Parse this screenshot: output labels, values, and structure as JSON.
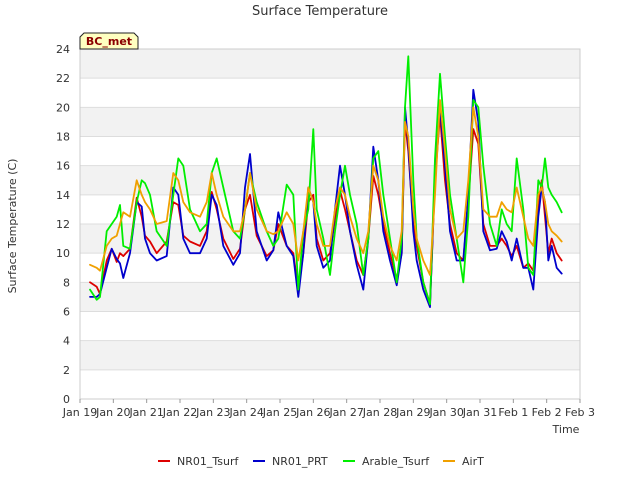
{
  "chart_data": {
    "type": "line",
    "title": "Surface Temperature",
    "xlabel": "Time",
    "ylabel": "Surface Temperature (C)",
    "station_badge": "BC_met",
    "ylim": [
      0,
      24
    ],
    "xlim": [
      0,
      15
    ],
    "y_ticks": [
      0,
      2,
      4,
      6,
      8,
      10,
      12,
      14,
      16,
      18,
      20,
      22,
      24
    ],
    "x_ticks": [
      {
        "label": "Jan 19",
        "value": 0
      },
      {
        "label": "Jan 20",
        "value": 1
      },
      {
        "label": "Jan 21",
        "value": 2
      },
      {
        "label": "Jan 22",
        "value": 3
      },
      {
        "label": "Jan 23",
        "value": 4
      },
      {
        "label": "Jan 24",
        "value": 5
      },
      {
        "label": "Jan 25",
        "value": 6
      },
      {
        "label": "Jan 26",
        "value": 7
      },
      {
        "label": "Jan 27",
        "value": 8
      },
      {
        "label": "Jan 28",
        "value": 9
      },
      {
        "label": "Jan 29",
        "value": 10
      },
      {
        "label": "Jan 30",
        "value": 11
      },
      {
        "label": "Jan 31",
        "value": 12
      },
      {
        "label": "Feb 1",
        "value": 13
      },
      {
        "label": "Feb 2",
        "value": 14
      },
      {
        "label": "Feb 3",
        "value": 15
      }
    ],
    "series": [
      {
        "name": "NR01_Tsurf",
        "color": "#dd0000",
        "x": [
          0.3,
          0.5,
          0.6,
          0.8,
          0.95,
          1.1,
          1.2,
          1.3,
          1.5,
          1.7,
          1.85,
          1.95,
          2.1,
          2.3,
          2.6,
          2.8,
          2.95,
          3.1,
          3.3,
          3.6,
          3.8,
          3.95,
          4.1,
          4.3,
          4.6,
          4.8,
          4.95,
          5.1,
          5.3,
          5.6,
          5.8,
          5.95,
          6.2,
          6.4,
          6.55,
          6.7,
          6.85,
          7.0,
          7.1,
          7.3,
          7.5,
          7.65,
          7.8,
          7.95,
          8.1,
          8.3,
          8.5,
          8.65,
          8.8,
          8.95,
          9.1,
          9.3,
          9.5,
          9.65,
          9.75,
          9.85,
          10.0,
          10.1,
          10.3,
          10.5,
          10.65,
          10.8,
          10.95,
          11.1,
          11.3,
          11.5,
          11.65,
          11.8,
          11.95,
          12.1,
          12.3,
          12.5,
          12.65,
          12.8,
          12.95,
          13.1,
          13.3,
          13.45,
          13.6,
          13.75,
          13.85,
          13.95,
          14.05,
          14.15,
          14.3,
          14.45
        ],
        "values": [
          8.0,
          7.7,
          7.2,
          9.5,
          10.3,
          9.4,
          10.0,
          9.8,
          10.3,
          13.8,
          12.5,
          11.2,
          10.8,
          10.0,
          10.8,
          13.5,
          13.3,
          11.2,
          10.8,
          10.5,
          11.5,
          14.2,
          13.0,
          11.0,
          9.6,
          10.3,
          13.0,
          14.0,
          11.2,
          9.8,
          10.2,
          12.0,
          10.5,
          10.0,
          7.5,
          10.0,
          13.5,
          14.0,
          11.0,
          9.5,
          10.0,
          12.3,
          14.3,
          13.0,
          11.5,
          9.5,
          8.5,
          11.0,
          15.3,
          14.0,
          12.0,
          10.0,
          8.2,
          10.0,
          19.0,
          17.0,
          12.0,
          10.5,
          8.0,
          6.5,
          15.0,
          19.5,
          15.0,
          12.0,
          10.0,
          9.5,
          13.5,
          18.5,
          17.5,
          12.0,
          10.5,
          10.5,
          11.0,
          10.5,
          9.8,
          10.5,
          9.0,
          9.3,
          8.8,
          13.0,
          15.0,
          12.5,
          10.0,
          11.0,
          10.0,
          9.5
        ]
      },
      {
        "name": "NR01_PRT",
        "color": "#0000cc",
        "x": [
          0.3,
          0.5,
          0.6,
          0.8,
          0.95,
          1.1,
          1.2,
          1.3,
          1.5,
          1.7,
          1.85,
          1.95,
          2.1,
          2.3,
          2.6,
          2.8,
          2.95,
          3.1,
          3.3,
          3.6,
          3.8,
          3.95,
          4.1,
          4.3,
          4.6,
          4.8,
          4.95,
          5.1,
          5.3,
          5.6,
          5.8,
          5.95,
          6.2,
          6.4,
          6.55,
          6.7,
          6.85,
          7.0,
          7.1,
          7.3,
          7.5,
          7.65,
          7.8,
          7.95,
          8.1,
          8.3,
          8.5,
          8.65,
          8.8,
          8.95,
          9.1,
          9.3,
          9.5,
          9.65,
          9.75,
          9.85,
          10.0,
          10.1,
          10.3,
          10.5,
          10.65,
          10.8,
          10.95,
          11.1,
          11.3,
          11.5,
          11.65,
          11.8,
          11.95,
          12.1,
          12.3,
          12.5,
          12.65,
          12.8,
          12.95,
          13.1,
          13.3,
          13.45,
          13.6,
          13.75,
          13.85,
          13.95,
          14.05,
          14.15,
          14.3,
          14.45
        ],
        "values": [
          7.0,
          7.0,
          7.2,
          9.0,
          10.3,
          9.6,
          9.3,
          8.3,
          10.0,
          13.5,
          13.2,
          11.0,
          10.0,
          9.5,
          9.8,
          14.5,
          14.0,
          11.0,
          10.0,
          10.0,
          11.0,
          14.0,
          13.3,
          10.5,
          9.2,
          10.0,
          14.5,
          16.8,
          11.5,
          9.5,
          10.2,
          12.8,
          10.5,
          9.8,
          7.0,
          10.0,
          14.5,
          13.5,
          10.5,
          9.0,
          9.5,
          13.0,
          16.0,
          14.0,
          11.5,
          9.2,
          7.5,
          11.0,
          17.3,
          15.0,
          11.5,
          9.5,
          7.8,
          10.0,
          20.0,
          17.5,
          11.5,
          9.5,
          7.5,
          6.3,
          15.5,
          20.0,
          16.0,
          11.5,
          9.5,
          9.5,
          14.0,
          21.2,
          19.0,
          11.5,
          10.2,
          10.3,
          11.5,
          10.8,
          9.5,
          11.0,
          9.0,
          9.0,
          7.5,
          12.5,
          14.5,
          13.5,
          9.5,
          10.5,
          9.0,
          8.6
        ]
      },
      {
        "name": "Arable_Tsurf",
        "color": "#00ee00",
        "x": [
          0.3,
          0.5,
          0.6,
          0.8,
          0.95,
          1.1,
          1.2,
          1.3,
          1.5,
          1.7,
          1.85,
          1.95,
          2.1,
          2.3,
          2.6,
          2.8,
          2.95,
          3.1,
          3.3,
          3.6,
          3.8,
          3.95,
          4.1,
          4.3,
          4.6,
          4.8,
          4.95,
          5.1,
          5.3,
          5.6,
          5.8,
          5.95,
          6.2,
          6.4,
          6.55,
          6.7,
          6.85,
          7.0,
          7.1,
          7.3,
          7.5,
          7.65,
          7.8,
          7.95,
          8.1,
          8.3,
          8.5,
          8.65,
          8.8,
          8.95,
          9.1,
          9.3,
          9.5,
          9.65,
          9.75,
          9.85,
          10.0,
          10.1,
          10.3,
          10.5,
          10.65,
          10.8,
          10.95,
          11.1,
          11.3,
          11.5,
          11.65,
          11.8,
          11.95,
          12.1,
          12.3,
          12.5,
          12.65,
          12.8,
          12.95,
          13.1,
          13.3,
          13.45,
          13.6,
          13.75,
          13.85,
          13.95,
          14.05,
          14.15,
          14.3,
          14.45
        ],
        "values": [
          7.5,
          6.8,
          7.0,
          11.5,
          12.0,
          12.5,
          13.3,
          10.5,
          10.3,
          13.5,
          15.0,
          14.8,
          14.0,
          11.5,
          10.5,
          14.0,
          16.5,
          16.0,
          13.0,
          11.5,
          12.0,
          15.5,
          16.5,
          14.5,
          11.5,
          11.0,
          13.0,
          15.5,
          13.5,
          11.5,
          10.5,
          11.0,
          14.7,
          14.0,
          7.5,
          11.5,
          13.0,
          18.5,
          13.0,
          11.0,
          8.5,
          11.5,
          14.0,
          16.0,
          14.0,
          12.0,
          8.5,
          11.0,
          16.5,
          17.0,
          14.0,
          11.0,
          8.0,
          11.0,
          20.0,
          23.5,
          15.0,
          11.0,
          8.0,
          6.5,
          16.5,
          22.3,
          18.0,
          14.0,
          11.0,
          8.0,
          12.5,
          20.5,
          20.0,
          16.0,
          12.0,
          10.5,
          13.0,
          12.0,
          11.5,
          16.5,
          13.0,
          9.0,
          8.5,
          15.0,
          14.5,
          16.5,
          14.5,
          14.0,
          13.5,
          12.8
        ]
      },
      {
        "name": "AirT",
        "color": "#f0a000",
        "x": [
          0.3,
          0.5,
          0.6,
          0.8,
          0.95,
          1.1,
          1.2,
          1.3,
          1.5,
          1.7,
          1.85,
          1.95,
          2.1,
          2.3,
          2.6,
          2.8,
          2.95,
          3.1,
          3.3,
          3.6,
          3.8,
          3.95,
          4.1,
          4.3,
          4.6,
          4.8,
          4.95,
          5.1,
          5.3,
          5.6,
          5.8,
          5.95,
          6.2,
          6.4,
          6.55,
          6.7,
          6.85,
          7.0,
          7.1,
          7.3,
          7.5,
          7.65,
          7.8,
          7.95,
          8.1,
          8.3,
          8.5,
          8.65,
          8.8,
          8.95,
          9.1,
          9.3,
          9.5,
          9.65,
          9.75,
          9.85,
          10.0,
          10.1,
          10.3,
          10.5,
          10.65,
          10.8,
          10.95,
          11.1,
          11.3,
          11.5,
          11.65,
          11.8,
          11.95,
          12.1,
          12.3,
          12.5,
          12.65,
          12.8,
          12.95,
          13.1,
          13.3,
          13.45,
          13.6,
          13.75,
          13.85,
          13.95,
          14.05,
          14.15,
          14.3,
          14.45
        ],
        "values": [
          9.2,
          9.0,
          8.8,
          10.5,
          11.0,
          11.2,
          12.0,
          12.8,
          12.5,
          15.0,
          14.0,
          13.5,
          13.0,
          12.0,
          12.2,
          15.5,
          15.0,
          13.5,
          12.8,
          12.5,
          13.5,
          15.5,
          14.0,
          12.5,
          11.5,
          11.5,
          13.0,
          15.5,
          13.0,
          11.5,
          11.3,
          11.5,
          12.8,
          12.0,
          9.5,
          11.5,
          14.5,
          13.5,
          12.0,
          10.5,
          10.5,
          13.0,
          14.5,
          14.0,
          12.5,
          11.0,
          10.0,
          11.5,
          16.0,
          15.0,
          12.5,
          10.5,
          9.5,
          11.5,
          19.0,
          18.0,
          13.0,
          11.0,
          9.5,
          8.5,
          14.0,
          20.5,
          17.0,
          13.0,
          11.0,
          11.5,
          15.0,
          20.0,
          18.0,
          13.0,
          12.5,
          12.5,
          13.5,
          13.0,
          12.8,
          14.5,
          12.5,
          11.0,
          10.5,
          14.0,
          14.5,
          13.5,
          12.0,
          11.5,
          11.2,
          10.8
        ]
      }
    ],
    "legend_position": "bottom-center",
    "grid": true
  }
}
